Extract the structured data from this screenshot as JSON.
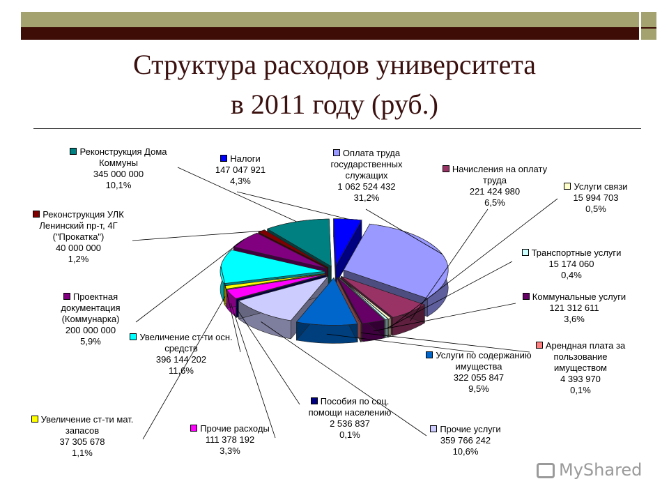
{
  "header": {
    "title_line1": "Структура расходов университета",
    "title_line2": "в 2011 году (руб.)"
  },
  "watermark": "MyShared",
  "chart_data": {
    "type": "pie",
    "title": "Структура расходов университета в 2011 году (руб.)",
    "slices": [
      {
        "label": "Оплата труда государственных служащих",
        "value_text": "1 062 524 432",
        "value": 1062524432,
        "pct_text": "31,2%",
        "pct": 31.2,
        "color": "#9999ff"
      },
      {
        "label": "Начисления на оплату труда",
        "value_text": "221 424 980",
        "value": 221424980,
        "pct_text": "6,5%",
        "pct": 6.5,
        "color": "#993366"
      },
      {
        "label": "Услуги связи",
        "value_text": "15 994 703",
        "value": 15994703,
        "pct_text": "0,5%",
        "pct": 0.5,
        "color": "#ffffcc"
      },
      {
        "label": "Транспортные услуги",
        "value_text": "15 174 060",
        "value": 15174060,
        "pct_text": "0,4%",
        "pct": 0.4,
        "color": "#ccffff"
      },
      {
        "label": "Коммунальные услуги",
        "value_text": "121 312 611",
        "value": 121312611,
        "pct_text": "3,6%",
        "pct": 3.6,
        "color": "#660066"
      },
      {
        "label": "Арендная плата за пользование имуществом",
        "value_text": "4 393 970",
        "value": 4393970,
        "pct_text": "0,1%",
        "pct": 0.1,
        "color": "#ff8080"
      },
      {
        "label": "Услуги по содержанию имущества",
        "value_text": "322 055 847",
        "value": 322055847,
        "pct_text": "9,5%",
        "pct": 9.5,
        "color": "#0066cc"
      },
      {
        "label": "Прочие услуги",
        "value_text": "359 766 242",
        "value": 359766242,
        "pct_text": "10,6%",
        "pct": 10.6,
        "color": "#ccccff"
      },
      {
        "label": "Пособия по соц. помощи населению",
        "value_text": "2 536 837",
        "value": 2536837,
        "pct_text": "0,1%",
        "pct": 0.1,
        "color": "#000080"
      },
      {
        "label": "Прочие расходы",
        "value_text": "111 378 192",
        "value": 111378192,
        "pct_text": "3,3%",
        "pct": 3.3,
        "color": "#ff00ff"
      },
      {
        "label": "Увеличение ст-ти мат. запасов",
        "value_text": "37 305 678",
        "value": 37305678,
        "pct_text": "1,1%",
        "pct": 1.1,
        "color": "#ffff00"
      },
      {
        "label": "Увеличение ст-ти осн. средств",
        "value_text": "396 144 202",
        "value": 396144202,
        "pct_text": "11,6%",
        "pct": 11.6,
        "color": "#00ffff"
      },
      {
        "label": "Проектная документация (Коммунарка)",
        "value_text": "200 000 000",
        "value": 200000000,
        "pct_text": "5,9%",
        "pct": 5.9,
        "color": "#800080"
      },
      {
        "label": "Реконструкция УЛК Ленинский пр-т, 4Г (\"Прокатка\")",
        "value_text": "40 000 000",
        "value": 40000000,
        "pct_text": "1,2%",
        "pct": 1.2,
        "color": "#800000"
      },
      {
        "label": "Реконструкция Дома Коммуны",
        "value_text": "345 000 000",
        "value": 345000000,
        "pct_text": "10,1%",
        "pct": 10.1,
        "color": "#008080"
      },
      {
        "label": "Налоги",
        "value_text": "147 047 921",
        "value": 147047921,
        "pct_text": "4,3%",
        "pct": 4.3,
        "color": "#0000ff"
      }
    ]
  }
}
